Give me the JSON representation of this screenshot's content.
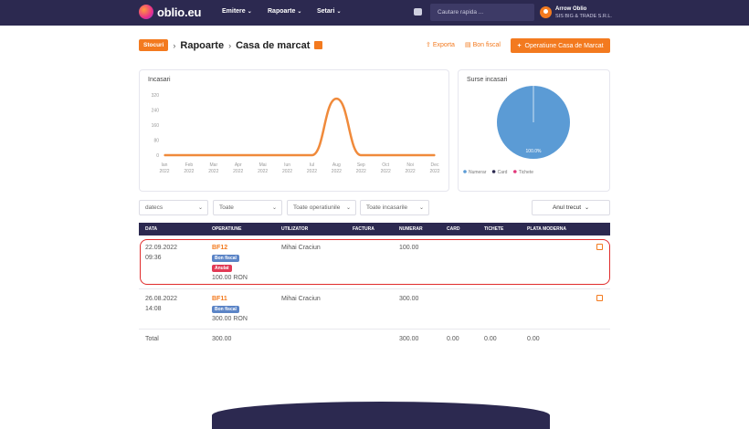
{
  "header": {
    "logo_text": "oblio.eu",
    "nav": [
      "Emitere",
      "Rapoarte",
      "Setari"
    ],
    "search_placeholder": "Cautare rapida ...",
    "user_name": "Arrow Oblio",
    "user_company": "SIS BIG & TRADE S.R.L."
  },
  "breadcrumb": {
    "stoc": "Stocuri",
    "rapoarte": "Rapoarte",
    "current": "Casa de marcat"
  },
  "actions": {
    "export": "Exporta",
    "bon_fiscal": "Bon fiscal",
    "operatiune": "Operatiune Casa de Marcat"
  },
  "income_chart": {
    "title": "Incasari"
  },
  "sources_chart": {
    "title": "Surse incasari",
    "slice_label": "100.0%"
  },
  "chart_data": [
    {
      "type": "area",
      "title": "Incasari",
      "categories": [
        "Ian 2022",
        "Feb 2022",
        "Mar 2022",
        "Apr 2022",
        "Mai 2022",
        "Iun 2022",
        "Iul 2022",
        "Aug 2022",
        "Sep 2022",
        "Oct 2022",
        "Noi 2022",
        "Dec 2022"
      ],
      "values": [
        0,
        0,
        0,
        0,
        0,
        0,
        0,
        300,
        0,
        0,
        0,
        0
      ],
      "yticks": [
        0,
        80,
        160,
        240,
        320
      ],
      "ylim": [
        0,
        320
      ],
      "color": "#f08a3b",
      "grid": false
    },
    {
      "type": "pie",
      "title": "Surse incasari",
      "categories": [
        "Numerar",
        "Card",
        "Tichete"
      ],
      "values": [
        100.0,
        0,
        0
      ],
      "colors": [
        "#5b9bd5",
        "#2c2950",
        "#e2387a"
      ],
      "legend": "bottom"
    }
  ],
  "filters": {
    "date": "datecs",
    "toate": "Toate",
    "operatiuni": "Toate operatiunile",
    "incasari": "Toate incasarile",
    "period": "Anul trecut"
  },
  "table": {
    "headers": [
      "DATA",
      "OPERATIUNE",
      "UTILIZATOR",
      "FACTURA",
      "NUMERAR",
      "CARD",
      "TICHETE",
      "PLATA MODERNA"
    ],
    "rows": [
      {
        "date": "22.09.2022",
        "time": "09:36",
        "op": "BF12",
        "badge1": "Bon fiscal",
        "badge2": "Anulat",
        "amount": "100.00 RON",
        "user": "Mihai Craciun",
        "numerar": "100.00"
      },
      {
        "date": "26.08.2022",
        "time": "14:08",
        "op": "BF11",
        "badge1": "Bon fiscal",
        "badge2": "",
        "amount": "300.00 RON",
        "user": "Mihai Craciun",
        "numerar": "300.00"
      }
    ],
    "total": {
      "label": "Total",
      "value": "300.00",
      "numerar": "300.00",
      "card": "0.00",
      "tichete": "0.00",
      "plata": "0.00"
    }
  }
}
